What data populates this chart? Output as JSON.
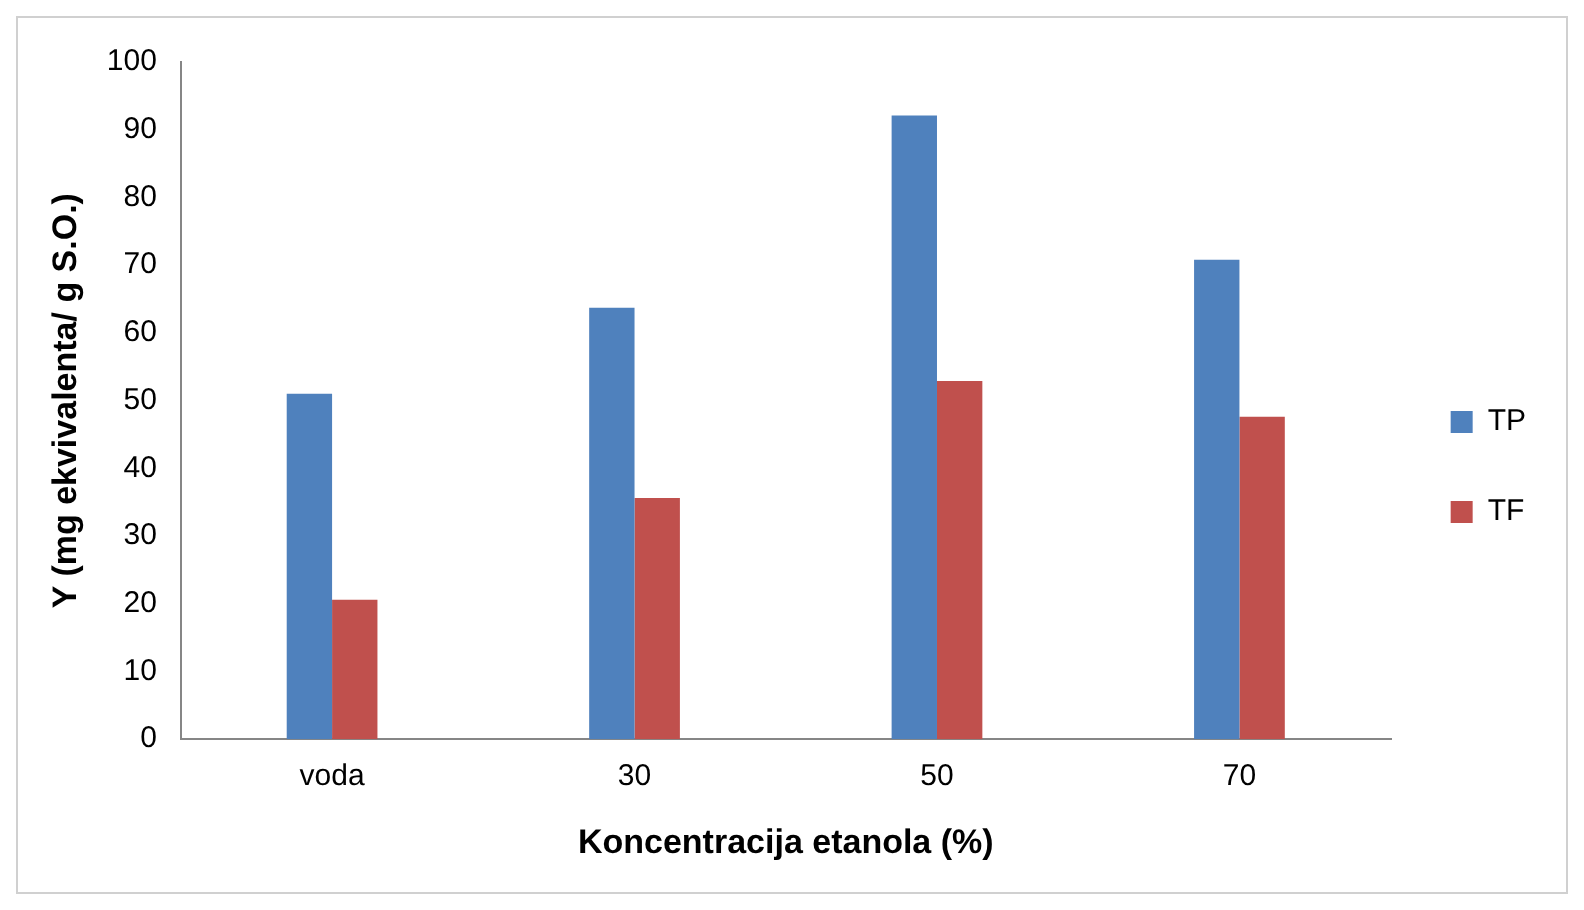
{
  "chart_data": {
    "type": "bar",
    "xlabel": "Koncentracija etanola (%)",
    "ylabel": "Y (mg ekvivalenta/ g S.O.)",
    "categories": [
      "voda",
      "30",
      "50",
      "70"
    ],
    "series": [
      {
        "name": "TP",
        "color": "#4f81bd",
        "values": [
          51.0,
          63.7,
          92.1,
          70.8
        ]
      },
      {
        "name": "TF",
        "color": "#c0504d",
        "values": [
          20.6,
          35.6,
          52.9,
          47.6
        ]
      }
    ],
    "ylim": [
      0,
      100
    ],
    "yticks": [
      0,
      10,
      20,
      30,
      40,
      50,
      60,
      70,
      80,
      90,
      100
    ],
    "grid": false,
    "legend": "right"
  }
}
